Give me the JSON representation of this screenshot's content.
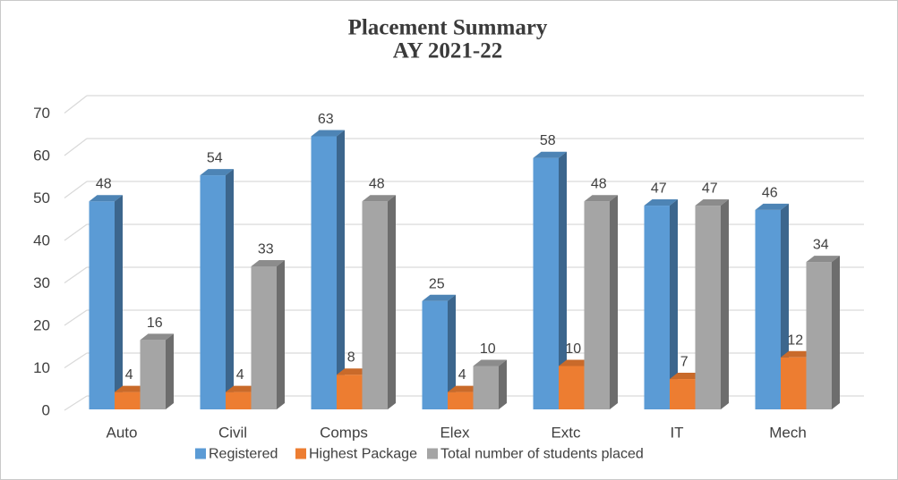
{
  "title": {
    "line1": "Placement Summary",
    "line2": "AY 2021-22"
  },
  "chart_data": {
    "type": "bar",
    "style": "3d-clustered-column",
    "title": "Placement Summary AY 2021-22",
    "categories": [
      "Auto",
      "Civil",
      "Comps",
      "Elex",
      "Extc",
      "IT",
      "Mech"
    ],
    "series": [
      {
        "name": "Registered",
        "color": "#5B9BD5",
        "values": [
          48,
          54,
          63,
          25,
          58,
          47,
          46
        ]
      },
      {
        "name": "Highest Package",
        "color": "#ED7D31",
        "values": [
          4,
          4,
          8,
          4,
          10,
          7,
          12
        ]
      },
      {
        "name": "Total number of students placed",
        "color": "#A5A5A5",
        "values": [
          16,
          33,
          48,
          10,
          48,
          47,
          34
        ]
      }
    ],
    "ylim": [
      0,
      70
    ],
    "yticks": [
      0,
      10,
      20,
      30,
      40,
      50,
      60,
      70
    ],
    "grid": true,
    "value_labels": true,
    "legend_position": "bottom",
    "text_color": "#404040",
    "title_color": "#3A3A3A",
    "grid_color": "#D9D9D9",
    "border_color": "#C9C9C9"
  }
}
